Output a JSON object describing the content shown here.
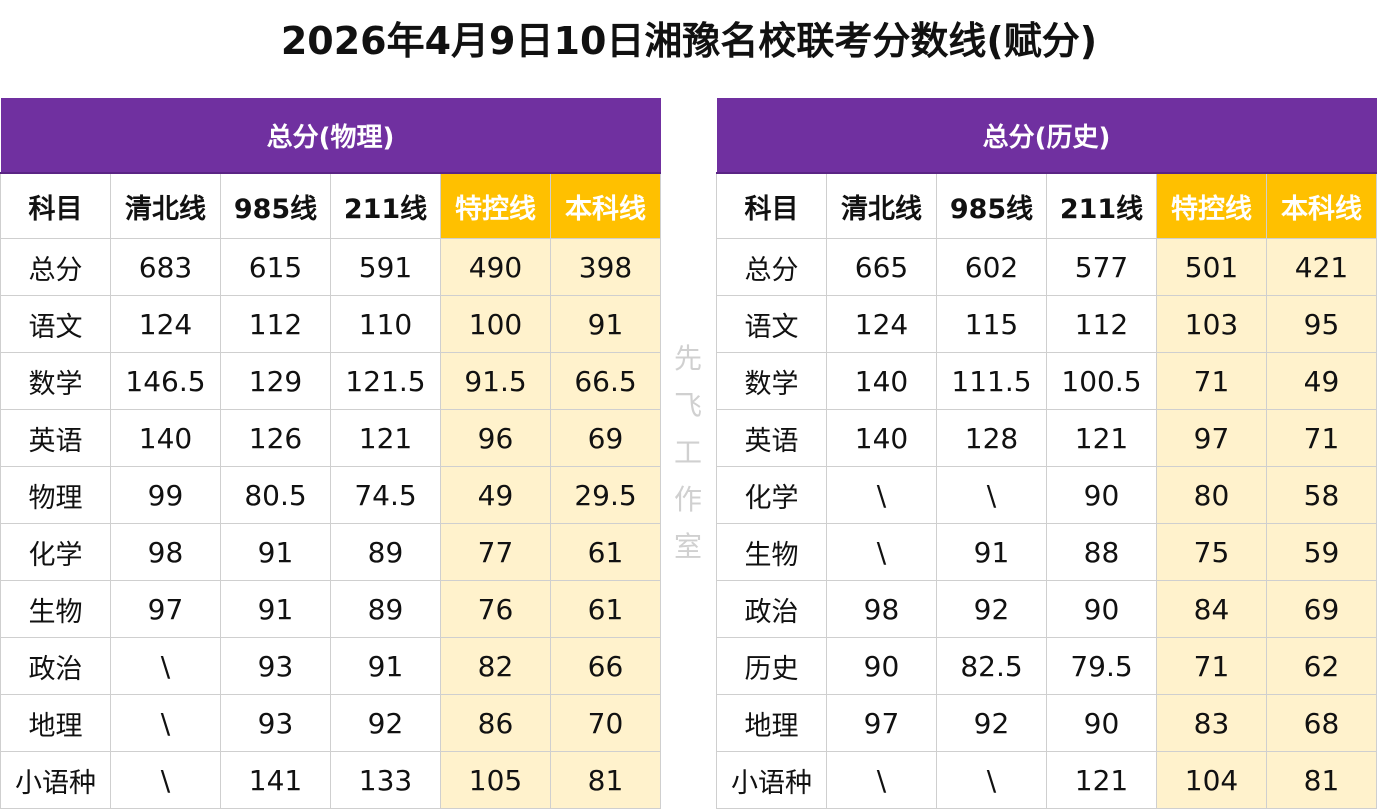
{
  "title": "2026年4月9日10日湘豫名校联考分数线(赋分)",
  "watermark": [
    "先",
    "飞",
    "工",
    "作",
    "室"
  ],
  "colors": {
    "header_purple": "#7030a0",
    "highlight_header": "#ffc000",
    "highlight_cell": "#fff2cc"
  },
  "tables": [
    {
      "group_title": "总分(物理)",
      "columns": [
        "科目",
        "清北线",
        "985线",
        "211线",
        "特控线",
        "本科线"
      ],
      "rows": [
        [
          "总分",
          "683",
          "615",
          "591",
          "490",
          "398"
        ],
        [
          "语文",
          "124",
          "112",
          "110",
          "100",
          "91"
        ],
        [
          "数学",
          "146.5",
          "129",
          "121.5",
          "91.5",
          "66.5"
        ],
        [
          "英语",
          "140",
          "126",
          "121",
          "96",
          "69"
        ],
        [
          "物理",
          "99",
          "80.5",
          "74.5",
          "49",
          "29.5"
        ],
        [
          "化学",
          "98",
          "91",
          "89",
          "77",
          "61"
        ],
        [
          "生物",
          "97",
          "91",
          "89",
          "76",
          "61"
        ],
        [
          "政治",
          "\\",
          "93",
          "91",
          "82",
          "66"
        ],
        [
          "地理",
          "\\",
          "93",
          "92",
          "86",
          "70"
        ],
        [
          "小语种",
          "\\",
          "141",
          "133",
          "105",
          "81"
        ]
      ]
    },
    {
      "group_title": "总分(历史)",
      "columns": [
        "科目",
        "清北线",
        "985线",
        "211线",
        "特控线",
        "本科线"
      ],
      "rows": [
        [
          "总分",
          "665",
          "602",
          "577",
          "501",
          "421"
        ],
        [
          "语文",
          "124",
          "115",
          "112",
          "103",
          "95"
        ],
        [
          "数学",
          "140",
          "111.5",
          "100.5",
          "71",
          "49"
        ],
        [
          "英语",
          "140",
          "128",
          "121",
          "97",
          "71"
        ],
        [
          "化学",
          "\\",
          "\\",
          "90",
          "80",
          "58"
        ],
        [
          "生物",
          "\\",
          "91",
          "88",
          "75",
          "59"
        ],
        [
          "政治",
          "98",
          "92",
          "90",
          "84",
          "69"
        ],
        [
          "历史",
          "90",
          "82.5",
          "79.5",
          "71",
          "62"
        ],
        [
          "地理",
          "97",
          "92",
          "90",
          "83",
          "68"
        ],
        [
          "小语种",
          "\\",
          "\\",
          "121",
          "104",
          "81"
        ]
      ]
    }
  ]
}
